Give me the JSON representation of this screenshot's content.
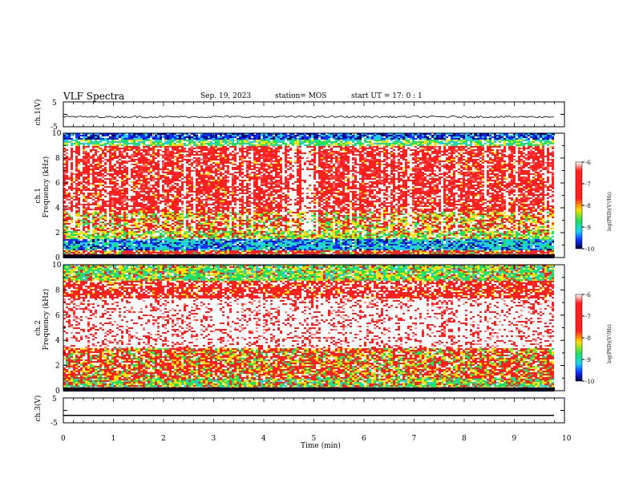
{
  "header": {
    "title": "VLF Spectra",
    "date": "Sep. 19, 2023",
    "station": "station= MOS",
    "start": "start  UT =   17: 0  : 1"
  },
  "colorbar": {
    "label": "log(PSD)(V²/Hz)",
    "ticks": [
      "-6",
      "-7",
      "-8",
      "-9",
      "-10"
    ],
    "range": [
      -10,
      -6
    ]
  },
  "colors": {
    "background": "#ffffff",
    "spectro_red": "#ff2020",
    "spectro_yellow": "#ffe000",
    "spectro_green": "#20e060",
    "spectro_cyan": "#20d0f0",
    "spectro_blue": "#1030ff",
    "spectro_dark": "#000080"
  },
  "chart_data": [
    {
      "type": "line",
      "title": "ch.1(V)",
      "ylabel": "ch.1(V)",
      "ylim": [
        -5,
        5
      ],
      "yticks": [
        "5",
        "-5"
      ],
      "xlim": [
        0,
        10
      ],
      "series": [
        {
          "values": "~ -1 (constant, small noise)"
        }
      ]
    },
    {
      "type": "heatmap",
      "ylabel_channel": "ch.1",
      "ylabel": "Frequency (kHz)",
      "ylim": [
        0,
        10
      ],
      "yticks": [
        "0",
        "2",
        "4",
        "6",
        "8",
        "10"
      ],
      "xlim": [
        0,
        10
      ],
      "description_bands_khz": [
        {
          "from": 0.2,
          "to": 0.6,
          "level": "red"
        },
        {
          "from": 0.6,
          "to": 1.6,
          "level": "cyan-blue"
        },
        {
          "from": 1.6,
          "to": 2.2,
          "level": "green-yellow"
        },
        {
          "from": 2.2,
          "to": 3.8,
          "level": "yellow-red"
        },
        {
          "from": 3.8,
          "to": 9.0,
          "level": "red"
        },
        {
          "from": 9.0,
          "to": 9.6,
          "level": "green"
        },
        {
          "from": 9.6,
          "to": 10.0,
          "level": "cyan-blue"
        }
      ]
    },
    {
      "type": "heatmap",
      "ylabel_channel": "ch.2",
      "ylabel": "Frequency (kHz)",
      "ylim": [
        0,
        10
      ],
      "yticks": [
        "0",
        "2",
        "4",
        "6",
        "8",
        "10"
      ],
      "xlim": [
        0,
        10
      ],
      "description_bands_khz": [
        {
          "from": 0.0,
          "to": 1.0,
          "level": "green-red"
        },
        {
          "from": 1.0,
          "to": 3.4,
          "level": "red-yellow"
        },
        {
          "from": 3.4,
          "to": 7.4,
          "level": "red-white sparse"
        },
        {
          "from": 7.4,
          "to": 8.8,
          "level": "red"
        },
        {
          "from": 8.8,
          "to": 10.0,
          "level": "green-yellow"
        }
      ]
    },
    {
      "type": "line",
      "title": "ch.3(V)",
      "ylabel": "ch.3(V)",
      "ylim": [
        -5,
        5
      ],
      "yticks": [
        "5",
        "-5"
      ],
      "xlim": [
        0,
        10
      ],
      "xlabel": "Time (min)",
      "xticks": [
        "0",
        "1",
        "2",
        "3",
        "4",
        "5",
        "6",
        "7",
        "8",
        "9",
        "10"
      ],
      "series": [
        {
          "values": "-2 (constant)"
        }
      ]
    }
  ]
}
